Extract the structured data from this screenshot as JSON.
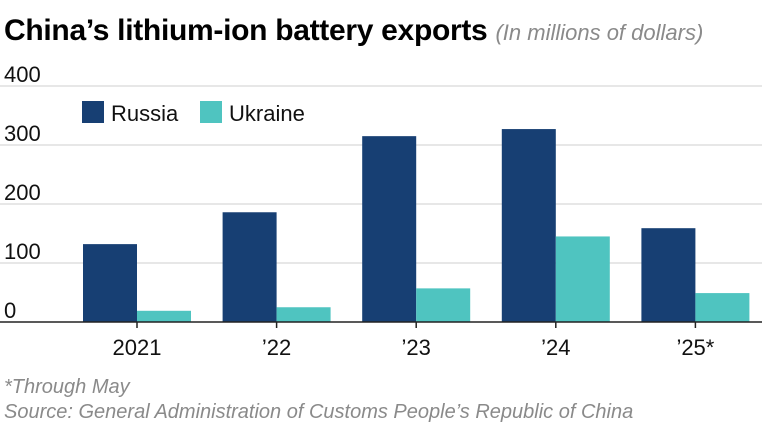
{
  "header": {
    "title": "China’s lithium-ion battery exports",
    "subtitle": "(In millions of dollars)"
  },
  "footer": {
    "footnote": "*Through May",
    "source": "Source: General Administration of Customs People’s Republic of China"
  },
  "colors": {
    "russia": "#173f73",
    "ukraine": "#4fc4c0",
    "grid": "#cfcfcf",
    "axis": "#222222"
  },
  "chart_data": {
    "type": "bar",
    "title": "China’s lithium-ion battery exports",
    "categories": [
      "2021",
      "’22",
      "’23",
      "’24",
      "’25*"
    ],
    "series": [
      {
        "name": "Russia",
        "values": [
          132,
          186,
          315,
          327,
          159
        ]
      },
      {
        "name": "Ukraine",
        "values": [
          19,
          25,
          57,
          145,
          49
        ]
      }
    ],
    "yticks": [
      "0",
      "100",
      "200",
      "300",
      "400"
    ],
    "ylim": [
      0,
      400
    ],
    "xlabel": "",
    "ylabel": "",
    "grid": true,
    "legend_position": "top-left"
  }
}
